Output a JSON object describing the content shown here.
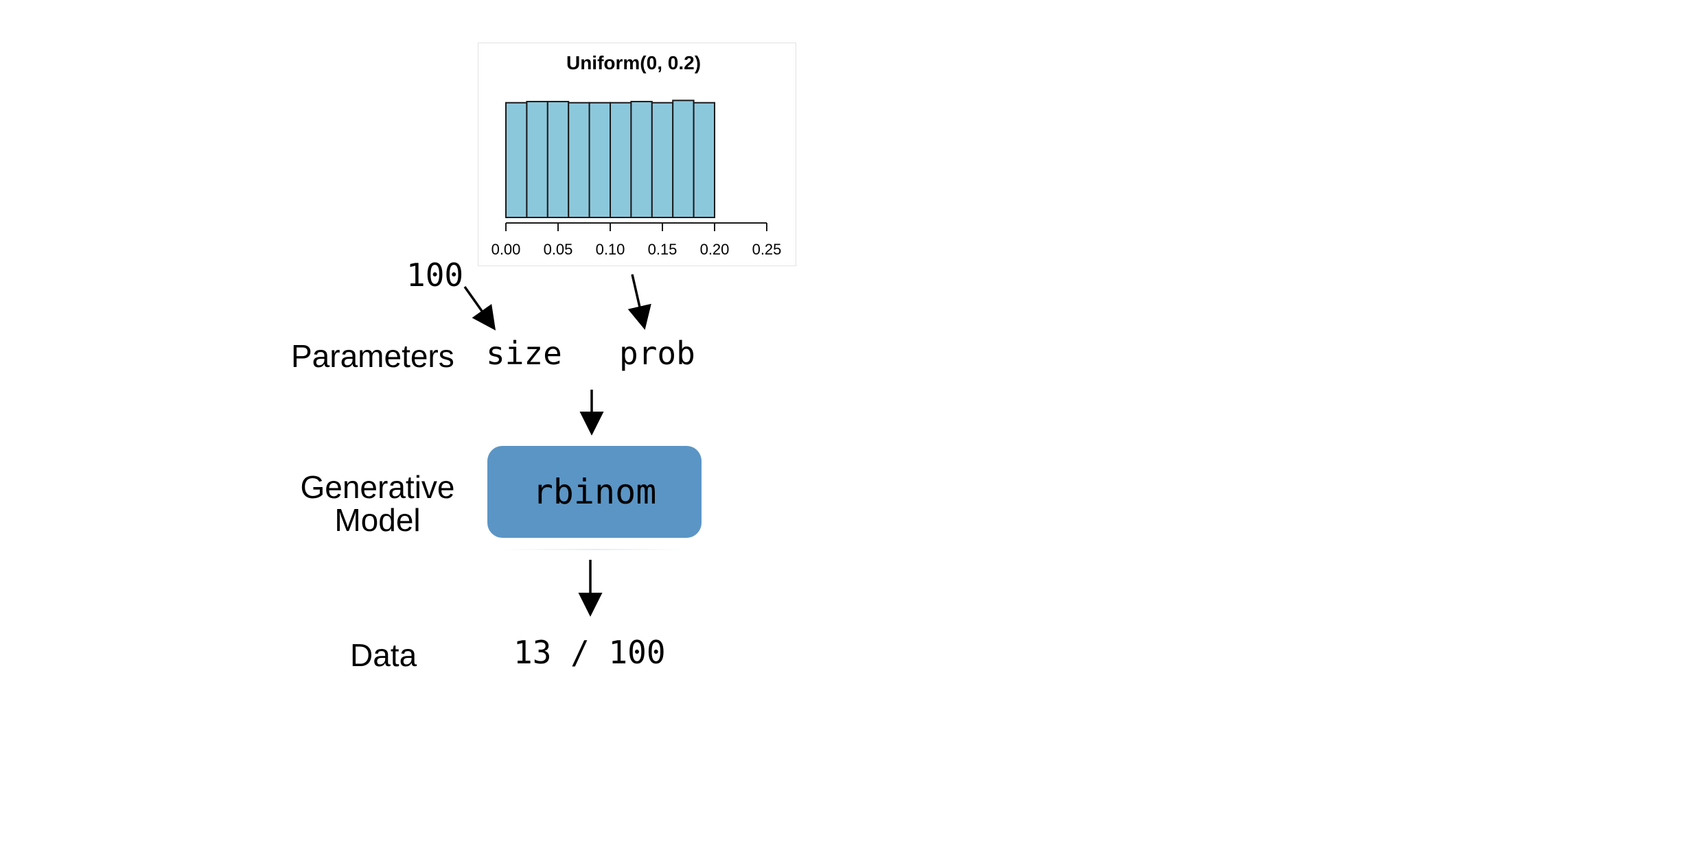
{
  "chart_data": {
    "type": "bar",
    "title": "Uniform(0, 0.2)",
    "xlabel": "",
    "ylabel": "",
    "bin_edges": [
      0.0,
      0.02,
      0.04,
      0.06,
      0.08,
      0.1,
      0.12,
      0.14,
      0.16,
      0.18,
      0.2
    ],
    "values": [
      1.0,
      1.01,
      1.01,
      1.0,
      1.0,
      1.0,
      1.01,
      1.0,
      1.02,
      1.0
    ],
    "xlim": [
      0.0,
      0.25
    ],
    "ylim": [
      0,
      1.1
    ],
    "x_ticks": [
      "0.00",
      "0.05",
      "0.10",
      "0.15",
      "0.20",
      "0.25"
    ],
    "bar_color": "#8cc8dc",
    "grid": false
  },
  "diagram": {
    "size_input": "100",
    "rows": {
      "parameters_label": "Parameters",
      "model_label_line1": "Generative",
      "model_label_line2": "Model",
      "data_label": "Data"
    },
    "params": {
      "size": "size",
      "prob": "prob"
    },
    "model": {
      "name": "rbinom",
      "color": "#5b95c5"
    },
    "data_value": "13 / 100"
  }
}
